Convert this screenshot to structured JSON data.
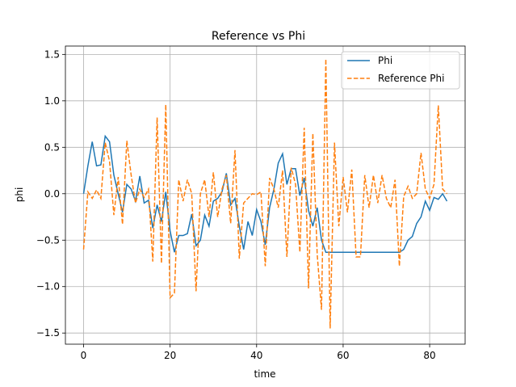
{
  "chart_data": {
    "type": "line",
    "title": "Reference vs Phi",
    "xlabel": "time",
    "ylabel": "phi",
    "x": [
      0,
      1,
      2,
      3,
      4,
      5,
      6,
      7,
      8,
      9,
      10,
      11,
      12,
      13,
      14,
      15,
      16,
      17,
      18,
      19,
      20,
      21,
      22,
      23,
      24,
      25,
      26,
      27,
      28,
      29,
      30,
      31,
      32,
      33,
      34,
      35,
      36,
      37,
      38,
      39,
      40,
      41,
      42,
      43,
      44,
      45,
      46,
      47,
      48,
      49,
      50,
      51,
      52,
      53,
      54,
      55,
      56,
      57,
      58,
      59,
      60,
      61,
      62,
      63,
      64,
      65,
      66,
      67,
      68,
      69,
      70,
      71,
      72,
      73,
      74,
      75,
      76,
      77,
      78,
      79,
      80,
      81,
      82,
      83,
      84
    ],
    "series": [
      {
        "name": "Phi",
        "color": "#1f77b4",
        "linestyle": "solid",
        "values": [
          0,
          0.3,
          0.56,
          0.3,
          0.31,
          0.62,
          0.56,
          0.2,
          0.0,
          -0.2,
          0.1,
          0.05,
          -0.08,
          0.19,
          -0.1,
          -0.07,
          -0.37,
          -0.12,
          -0.3,
          0.02,
          -0.4,
          -0.63,
          -0.45,
          -0.45,
          -0.43,
          -0.22,
          -0.56,
          -0.5,
          -0.23,
          -0.35,
          -0.08,
          -0.05,
          0.02,
          0.22,
          -0.12,
          -0.05,
          -0.35,
          -0.6,
          -0.3,
          -0.45,
          -0.17,
          -0.3,
          -0.55,
          -0.15,
          0.05,
          0.33,
          0.43,
          0.1,
          0.27,
          0.27,
          -0.02,
          0.17,
          -0.18,
          -0.35,
          -0.15,
          -0.5,
          -0.63,
          -0.63,
          -0.63,
          -0.63,
          -0.63,
          -0.63,
          -0.63,
          -0.63,
          -0.63,
          -0.63,
          -0.63,
          -0.63,
          -0.63,
          -0.63,
          -0.63,
          -0.63,
          -0.63,
          -0.63,
          -0.6,
          -0.5,
          -0.46,
          -0.32,
          -0.25,
          -0.08,
          -0.18,
          -0.04,
          -0.06,
          0.0,
          -0.08
        ]
      },
      {
        "name": "Reference Phi",
        "color": "#ff7f0e",
        "linestyle": "dashed",
        "values": [
          -0.6,
          0.02,
          -0.05,
          0.04,
          -0.05,
          0.55,
          0.35,
          -0.23,
          0.18,
          -0.33,
          0.57,
          0.2,
          -0.1,
          0.05,
          -0.04,
          0.05,
          -0.73,
          0.82,
          -0.75,
          0.96,
          -1.12,
          -1.07,
          0.15,
          -0.08,
          0.15,
          0.0,
          -1.05,
          0.0,
          0.15,
          -0.25,
          0.23,
          -0.25,
          0.05,
          0.2,
          -0.32,
          0.47,
          -0.7,
          -0.1,
          -0.05,
          0.0,
          -0.01,
          0.02,
          -0.78,
          0.17,
          0.05,
          -0.15,
          0.25,
          -0.68,
          0.28,
          0.1,
          -0.63,
          0.71,
          -1.02,
          0.65,
          -0.65,
          -1.25,
          1.45,
          -1.45,
          0.55,
          -0.35,
          0.18,
          -0.2,
          0.26,
          -0.68,
          -0.68,
          0.2,
          -0.15,
          0.2,
          -0.1,
          0.2,
          -0.05,
          -0.15,
          0.15,
          -0.78,
          -0.03,
          0.08,
          -0.05,
          0.0,
          0.44,
          0.05,
          -0.05,
          0.1,
          0.95,
          0.05,
          0.0
        ]
      }
    ],
    "xlim": [
      -4.2,
      88.2
    ],
    "xticks": [
      0,
      20,
      40,
      60,
      80
    ],
    "ylim": [
      -1.62,
      1.59
    ],
    "yticks": [
      {
        "value": -1.5,
        "label": "−1.5"
      },
      {
        "value": -1.0,
        "label": "−1.0"
      },
      {
        "value": -0.5,
        "label": "−0.5"
      },
      {
        "value": 0,
        "label": "0.0"
      },
      0.5,
      {
        "value": 1.0,
        "label": "1.0"
      },
      1.5
    ],
    "grid": true,
    "legend": "upper right"
  }
}
